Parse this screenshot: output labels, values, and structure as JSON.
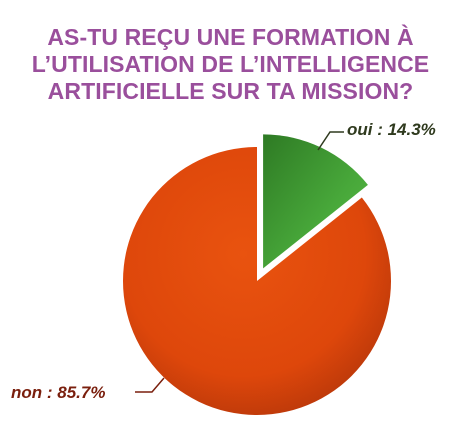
{
  "title_lines": [
    "AS-TU REÇU UNE FORMATION À",
    "L’UTILISATION DE L’INTELLIGENCE",
    "ARTIFICIELLE SUR TA MISSION?"
  ],
  "chart_data": {
    "type": "pie",
    "title": "AS-TU REÇU UNE FORMATION À L’UTILISATION DE L’INTELLIGENCE ARTIFICIELLE SUR TA MISSION?",
    "slices": [
      {
        "label": "oui",
        "value": 14.3,
        "display": "oui : 14.3%",
        "color": "#4caf3a",
        "color_dark": "#2f7d25",
        "exploded": true
      },
      {
        "label": "non",
        "value": 85.7,
        "display": "non : 85.7%",
        "color": "#e04a0c",
        "color_dark": "#9c2a06",
        "exploded": false
      }
    ],
    "legend": "none"
  }
}
